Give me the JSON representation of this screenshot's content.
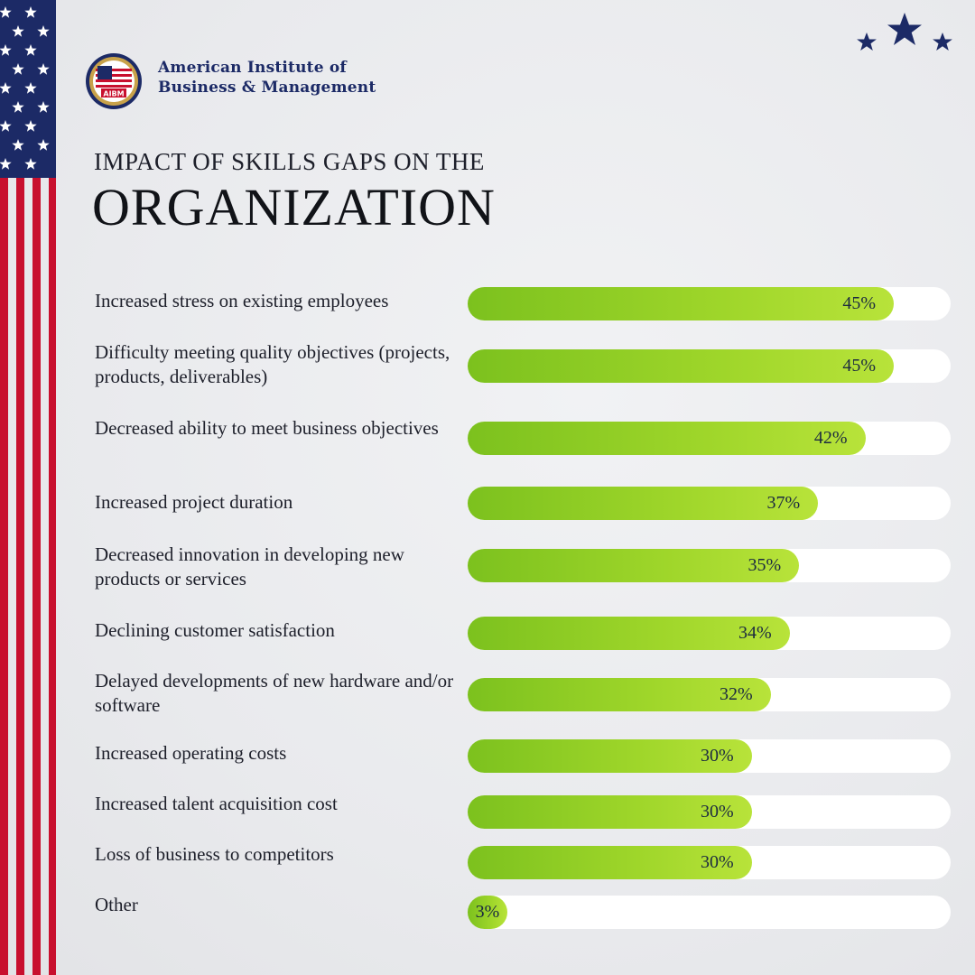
{
  "organization": {
    "line1": "American Institute of",
    "line2": "Business & Management",
    "logo_text": "AIBM"
  },
  "colors": {
    "bar_start": "#7cc11e",
    "bar_end": "#b8e33a",
    "track": "#ffffff",
    "navy": "#1c2a66",
    "flag_red": "#c8102e"
  },
  "icons": {
    "corner": "three-stars-icon",
    "flag": "us-flag-strip"
  },
  "chart_data": {
    "type": "bar",
    "orientation": "horizontal",
    "title_line1": "IMPACT OF SKILLS GAPS ON THE",
    "title_line2": "ORGANIZATION",
    "xlim": [
      0,
      51
    ],
    "value_suffix": "%",
    "categories": [
      "Increased stress on existing employees",
      "Difficulty meeting quality objectives (projects, products, deliverables)",
      "Decreased ability to meet business objectives",
      "Increased project duration",
      "Decreased innovation in developing new products or services",
      "Declining customer satisfaction",
      "Delayed developments of new hardware and/or software",
      "Increased operating costs",
      "Increased talent acquisition cost",
      "Loss of business to competitors",
      "Other"
    ],
    "values": [
      45,
      45,
      42,
      37,
      35,
      34,
      32,
      30,
      30,
      30,
      3
    ],
    "value_labels": [
      "45%",
      "45%",
      "42%",
      "37%",
      "35%",
      "34%",
      "32%",
      "30%",
      "30%",
      "30%",
      "3%"
    ]
  }
}
